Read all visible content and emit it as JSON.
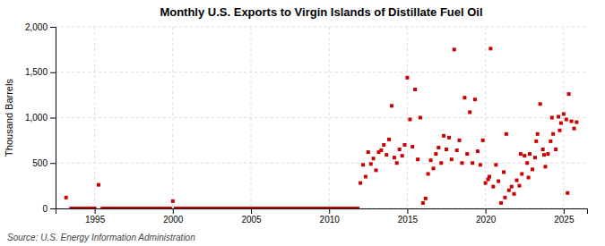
{
  "chart_data": {
    "type": "scatter",
    "title": "Monthly U.S. Exports to Virgin Islands of Distillate Fuel Oil",
    "y_label": "Thousand Barrels",
    "annotations": [
      "Source: U.S. Energy Information Administration"
    ],
    "color": "#cc0000",
    "marker": "square",
    "grid": true,
    "xlim": [
      1992.5,
      2026.5
    ],
    "ylim": [
      0,
      2000
    ],
    "xticks": [
      1995,
      2000,
      2005,
      2010,
      2015,
      2020,
      2025
    ],
    "yticks": [
      0,
      500,
      {
        "value": 1000,
        "label": "1,000"
      },
      {
        "value": 1500,
        "label": "1,500"
      },
      {
        "value": 2000,
        "label": "2,000"
      }
    ],
    "x": [
      1993.17,
      1993.5,
      1993.67,
      1993.83,
      1994.0,
      1994.17,
      1994.33,
      1994.5,
      1994.67,
      1994.83,
      1995.0,
      1995.25,
      1995.5,
      1995.67,
      1995.83,
      1996.0,
      1996.17,
      1996.33,
      1996.5,
      1996.67,
      1996.83,
      1997.0,
      1997.17,
      1997.33,
      1997.5,
      1997.67,
      1997.83,
      1998.0,
      1998.17,
      1998.33,
      1998.5,
      1998.67,
      1998.83,
      1999.0,
      1999.17,
      1999.33,
      1999.5,
      1999.67,
      1999.83,
      2000.0,
      2000.17,
      2000.33,
      2000.5,
      2000.67,
      2000.83,
      2001.0,
      2001.17,
      2001.33,
      2001.5,
      2001.67,
      2001.83,
      2002.0,
      2002.17,
      2002.33,
      2002.5,
      2002.67,
      2002.83,
      2003.0,
      2003.17,
      2003.33,
      2003.5,
      2003.67,
      2003.83,
      2004.0,
      2004.17,
      2004.33,
      2004.5,
      2004.67,
      2004.83,
      2005.0,
      2005.17,
      2005.33,
      2005.5,
      2005.67,
      2005.83,
      2006.0,
      2006.17,
      2006.33,
      2006.5,
      2006.67,
      2006.83,
      2007.0,
      2007.17,
      2007.33,
      2007.5,
      2007.67,
      2007.83,
      2008.0,
      2008.17,
      2008.33,
      2008.5,
      2008.67,
      2008.83,
      2009.0,
      2009.17,
      2009.33,
      2009.5,
      2009.67,
      2009.83,
      2010.0,
      2010.17,
      2010.33,
      2010.5,
      2010.67,
      2010.83,
      2011.0,
      2011.17,
      2011.33,
      2011.5,
      2011.67,
      2011.83,
      2012.0,
      2012.17,
      2012.33,
      2012.5,
      2012.67,
      2012.83,
      2013.0,
      2013.17,
      2013.33,
      2013.5,
      2013.67,
      2013.83,
      2014.0,
      2014.17,
      2014.33,
      2014.5,
      2014.67,
      2014.83,
      2015.0,
      2015.17,
      2015.33,
      2015.5,
      2015.67,
      2015.83,
      2016.0,
      2016.17,
      2016.33,
      2016.5,
      2016.67,
      2016.83,
      2017.0,
      2017.17,
      2017.33,
      2017.5,
      2017.67,
      2017.83,
      2018.0,
      2018.17,
      2018.33,
      2018.5,
      2018.67,
      2018.83,
      2019.0,
      2019.17,
      2019.33,
      2019.5,
      2019.67,
      2019.83,
      2020.0,
      2020.17,
      2020.33,
      2020.5,
      2020.67,
      2020.83,
      2021.0,
      2021.17,
      2021.33,
      2021.5,
      2021.67,
      2021.83,
      2022.0,
      2022.17,
      2022.33,
      2022.5,
      2022.67,
      2022.83,
      2023.0,
      2023.17,
      2023.33,
      2023.5,
      2023.67,
      2023.83,
      2024.0,
      2024.17,
      2024.33,
      2024.5,
      2024.67,
      2024.83,
      2025.0,
      2025.17,
      2025.33,
      2025.5,
      2025.67,
      2025.83,
      2020.25,
      2021.25,
      2022.25,
      2022.75,
      2023.25,
      2023.75,
      2024.25,
      2024.75,
      2025.25
    ],
    "values": [
      120,
      0,
      0,
      0,
      0,
      0,
      0,
      0,
      0,
      0,
      0,
      260,
      0,
      0,
      0,
      0,
      0,
      0,
      0,
      0,
      0,
      0,
      0,
      0,
      0,
      0,
      0,
      0,
      0,
      0,
      0,
      0,
      0,
      0,
      0,
      0,
      0,
      0,
      0,
      80,
      0,
      0,
      0,
      0,
      0,
      0,
      0,
      0,
      0,
      0,
      0,
      0,
      0,
      0,
      0,
      0,
      0,
      0,
      0,
      0,
      0,
      0,
      0,
      0,
      0,
      0,
      0,
      0,
      0,
      0,
      0,
      0,
      0,
      0,
      0,
      0,
      0,
      0,
      0,
      0,
      0,
      0,
      0,
      0,
      0,
      0,
      0,
      0,
      0,
      0,
      0,
      0,
      0,
      0,
      0,
      0,
      0,
      0,
      0,
      0,
      0,
      0,
      0,
      0,
      0,
      0,
      0,
      0,
      0,
      0,
      0,
      280,
      480,
      350,
      620,
      490,
      550,
      420,
      620,
      640,
      700,
      590,
      760,
      1130,
      560,
      500,
      650,
      580,
      700,
      1440,
      980,
      680,
      1310,
      540,
      1000,
      60,
      110,
      380,
      530,
      440,
      600,
      670,
      500,
      800,
      650,
      780,
      540,
      1750,
      640,
      750,
      500,
      1220,
      600,
      1060,
      500,
      1200,
      630,
      480,
      750,
      280,
      320,
      1760,
      240,
      480,
      300,
      60,
      400,
      820,
      200,
      240,
      160,
      310,
      250,
      380,
      580,
      500,
      600,
      430,
      560,
      820,
      1150,
      650,
      460,
      600,
      740,
      820,
      650,
      1010,
      940,
      1040,
      980,
      1260,
      960,
      880,
      950,
      350,
      120,
      600,
      340,
      740,
      590,
      1000,
      860,
      170
    ]
  }
}
